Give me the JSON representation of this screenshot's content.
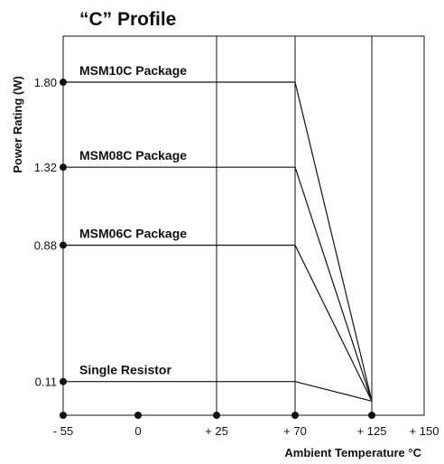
{
  "chart_data": {
    "type": "line",
    "title": "“C” Profile",
    "xlabel": "Ambient Temperature °C",
    "ylabel": "Power Rating (W)",
    "x_ticks": [
      {
        "value": -55,
        "label": "- 55"
      },
      {
        "value": 0,
        "label": "0"
      },
      {
        "value": 25,
        "label": "+ 25"
      },
      {
        "value": 70,
        "label": "+ 70"
      },
      {
        "value": 125,
        "label": "+ 125"
      },
      {
        "value": 150,
        "label": "+ 150"
      }
    ],
    "y_ticks": [
      {
        "value": 1.8,
        "label": "1.80"
      },
      {
        "value": 1.32,
        "label": "1.32"
      },
      {
        "value": 0.88,
        "label": "0.88"
      },
      {
        "value": 0.11,
        "label": "0.11"
      }
    ],
    "xlim": [
      -55,
      150
    ],
    "ylim": [
      -0.08,
      2.06
    ],
    "grid": true,
    "series": [
      {
        "name": "MSM10C Package",
        "points": [
          [
            -55,
            1.8
          ],
          [
            70,
            1.8
          ],
          [
            125,
            0
          ]
        ]
      },
      {
        "name": "MSM08C Package",
        "points": [
          [
            -55,
            1.32
          ],
          [
            70,
            1.32
          ],
          [
            125,
            0
          ]
        ]
      },
      {
        "name": "MSM06C Package",
        "points": [
          [
            -55,
            0.88
          ],
          [
            70,
            0.88
          ],
          [
            125,
            0
          ]
        ]
      },
      {
        "name": "Single Resistor",
        "points": [
          [
            -55,
            0.11
          ],
          [
            70,
            0.11
          ],
          [
            125,
            0
          ]
        ]
      }
    ]
  }
}
